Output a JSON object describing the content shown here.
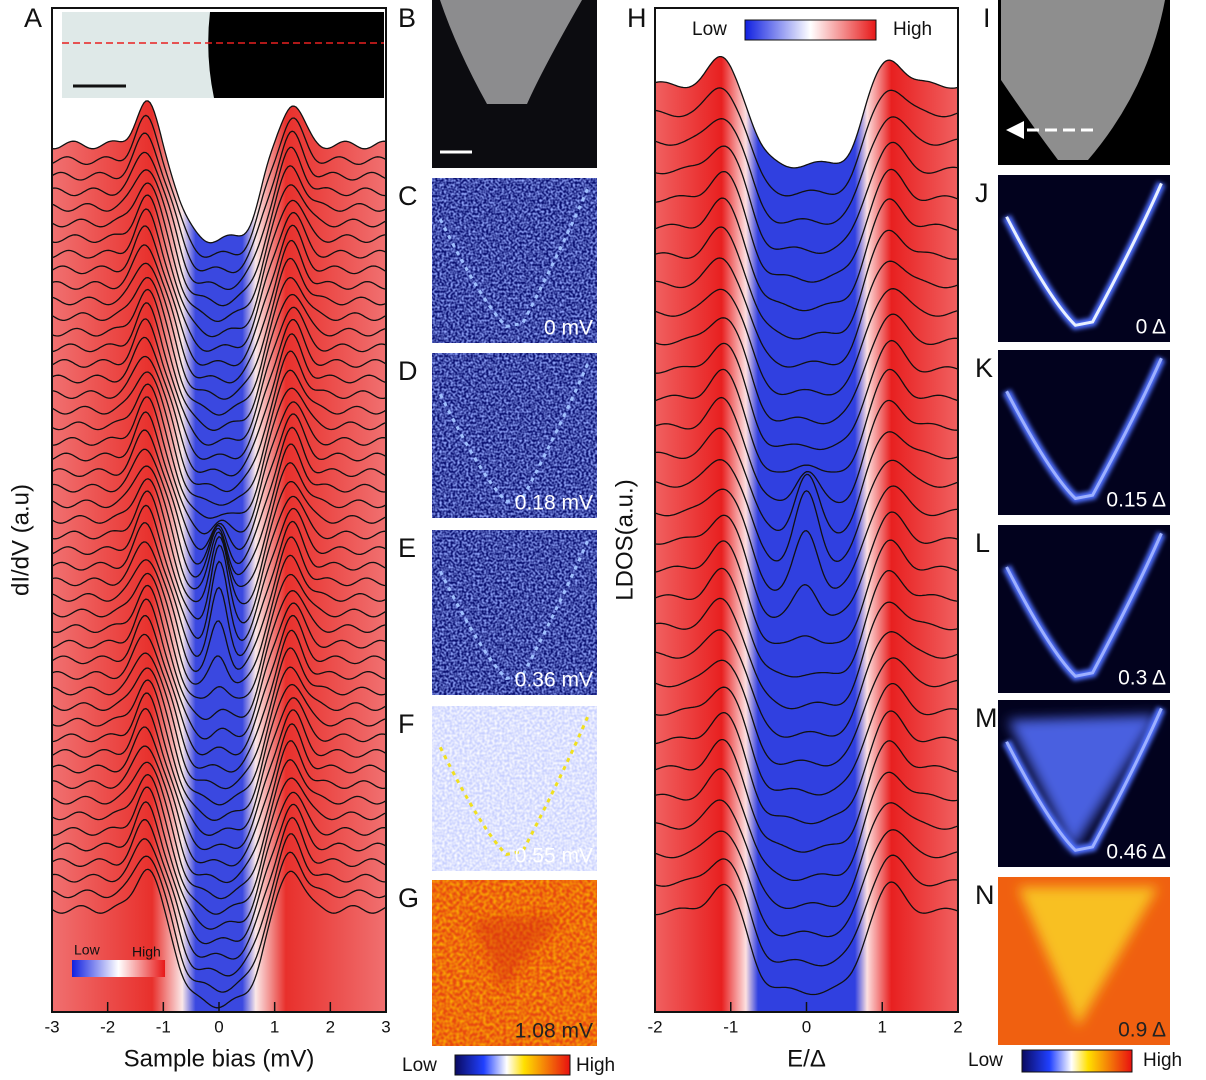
{
  "panel_a": {
    "label": "A",
    "xlabel": "Sample bias (mV)",
    "ylabel": "dI/dV (a.u)",
    "xlim": [
      -3,
      3
    ],
    "xticks": [
      -3,
      -2,
      -1,
      0,
      1,
      2,
      3
    ],
    "legend": {
      "low": "Low",
      "high": "High"
    }
  },
  "map_panels": [
    {
      "label": "B"
    },
    {
      "label": "C",
      "energy": "0 mV"
    },
    {
      "label": "D",
      "energy": "0.18 mV"
    },
    {
      "label": "E",
      "energy": "0.36 mV"
    },
    {
      "label": "F",
      "energy": "0.55 mV"
    },
    {
      "label": "G",
      "energy": "1.08 mV"
    }
  ],
  "map_colorbar": {
    "low": "Low",
    "high": "High"
  },
  "panel_h": {
    "label": "H",
    "xlabel": "E/Δ",
    "ylabel": "LDOS(a.u.)",
    "xlim": [
      -2,
      2
    ],
    "xticks": [
      -2,
      -1,
      0,
      1,
      2
    ],
    "colorbar": {
      "low": "Low",
      "high": "High"
    }
  },
  "sim_panels": [
    {
      "label": "I"
    },
    {
      "label": "J",
      "energy": "0 Δ"
    },
    {
      "label": "K",
      "energy": "0.15 Δ"
    },
    {
      "label": "L",
      "energy": "0.3 Δ"
    },
    {
      "label": "M",
      "energy": "0.46 Δ"
    },
    {
      "label": "N",
      "energy": "0.9 Δ"
    }
  ],
  "sim_colorbar": {
    "low": "Low",
    "high": "High"
  }
}
